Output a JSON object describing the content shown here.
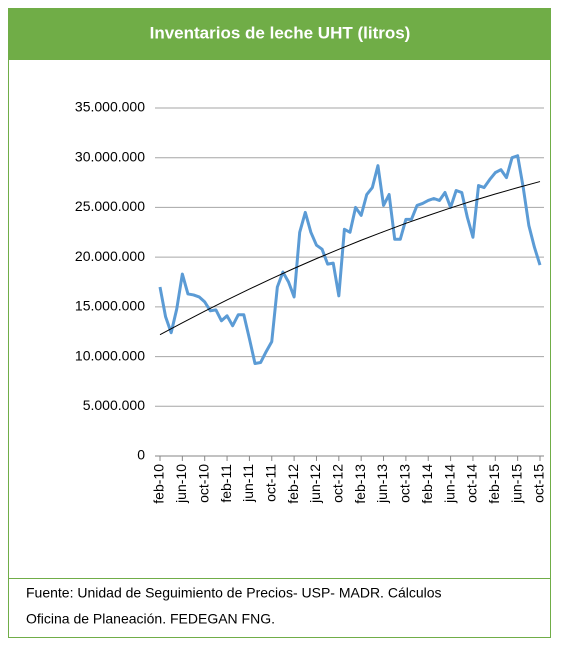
{
  "header": {
    "title": "Inventarios de leche UHT (litros)"
  },
  "chart_data": {
    "type": "line",
    "categories": [
      "feb-10",
      null,
      null,
      null,
      "jun-10",
      null,
      null,
      null,
      "oct-10",
      null,
      null,
      null,
      "feb-11",
      null,
      null,
      null,
      "jun-11",
      null,
      null,
      null,
      "oct-11",
      null,
      null,
      null,
      "feb-12",
      null,
      null,
      null,
      "jun-12",
      null,
      null,
      null,
      "oct-12",
      null,
      null,
      null,
      "feb-13",
      null,
      null,
      null,
      "jun-13",
      null,
      null,
      null,
      "oct-13",
      null,
      null,
      null,
      "feb-14",
      null,
      null,
      null,
      "jun-14",
      null,
      null,
      null,
      "oct-14",
      null,
      null,
      null,
      "feb-15",
      null,
      null,
      null,
      "jun-15",
      null,
      null,
      null,
      "oct-15"
    ],
    "series": [
      {
        "color": "#5b9bd5",
        "values": [
          17000000,
          14000000,
          12400000,
          14800000,
          18300000,
          16300000,
          16200000,
          16000000,
          15500000,
          14600000,
          14700000,
          13600000,
          14100000,
          13100000,
          14200000,
          14200000,
          11800000,
          9300000,
          9400000,
          10500000,
          11500000,
          17000000,
          18500000,
          17500000,
          16000000,
          22500000,
          24500000,
          22500000,
          21200000,
          20800000,
          19300000,
          19400000,
          16100000,
          22800000,
          22500000,
          25000000,
          24200000,
          26300000,
          27000000,
          29200000,
          25200000,
          26300000,
          21800000,
          21800000,
          23800000,
          23800000,
          25200000,
          25400000,
          25700000,
          25900000,
          25700000,
          26500000,
          25000000,
          26700000,
          26500000,
          24000000,
          22000000,
          27200000,
          27000000,
          27800000,
          28500000,
          28800000,
          28000000,
          30000000,
          30200000,
          27000000,
          23200000,
          21000000,
          19200000
        ]
      }
    ],
    "trendline": {
      "color": "#000000",
      "x": [
        0,
        4,
        8,
        12,
        16,
        20,
        24,
        28,
        32,
        36,
        40,
        44,
        48,
        52,
        56,
        60,
        64,
        68
      ],
      "values": [
        12200000,
        13400000,
        14570000,
        15700000,
        16790000,
        17850000,
        18870000,
        19850000,
        20790000,
        21700000,
        22560000,
        23400000,
        24190000,
        24950000,
        25670000,
        26350000,
        26990000,
        27600000
      ]
    },
    "ylim": [
      0,
      35000000
    ],
    "yticks": [
      0,
      {
        "value": 5000000,
        "label": "5.000.000"
      },
      {
        "value": 10000000,
        "label": "10.000.000"
      },
      {
        "value": 15000000,
        "label": "15.000.000"
      },
      {
        "value": 20000000,
        "label": "20.000.000"
      },
      {
        "value": 25000000,
        "label": "25.000.000"
      },
      {
        "value": 30000000,
        "label": "30.000.000"
      },
      {
        "value": 35000000,
        "label": "35.000.000"
      }
    ],
    "grid": true
  },
  "footer": {
    "lines": [
      "Fuente: Unidad de Seguimiento de Precios- USP- MADR. Cálculos",
      "Oficina de Planeación. FEDEGAN FNG."
    ]
  }
}
